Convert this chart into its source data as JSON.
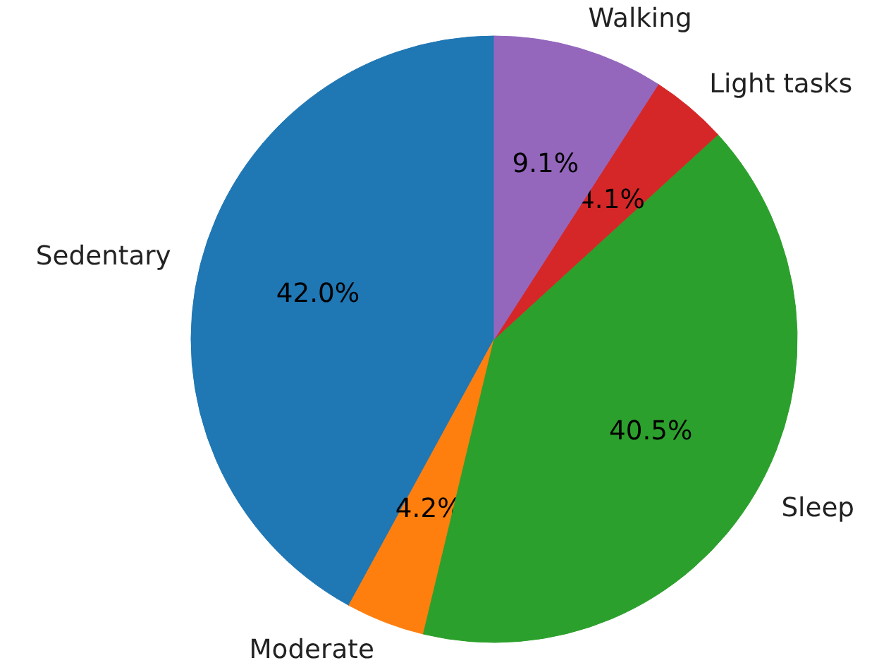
{
  "chart_data": {
    "type": "pie",
    "categories": [
      "Sedentary",
      "Moderate",
      "Sleep",
      "Light tasks",
      "Walking"
    ],
    "values": [
      42.0,
      4.2,
      40.5,
      4.1,
      9.1
    ],
    "colors": [
      "#1f77b4",
      "#ff7f0e",
      "#2ca02c",
      "#d62728",
      "#9467bd"
    ],
    "value_labels": [
      "42.0%",
      "4.2%",
      "40.5%",
      "4.1%",
      "9.1%"
    ],
    "legend": false
  }
}
